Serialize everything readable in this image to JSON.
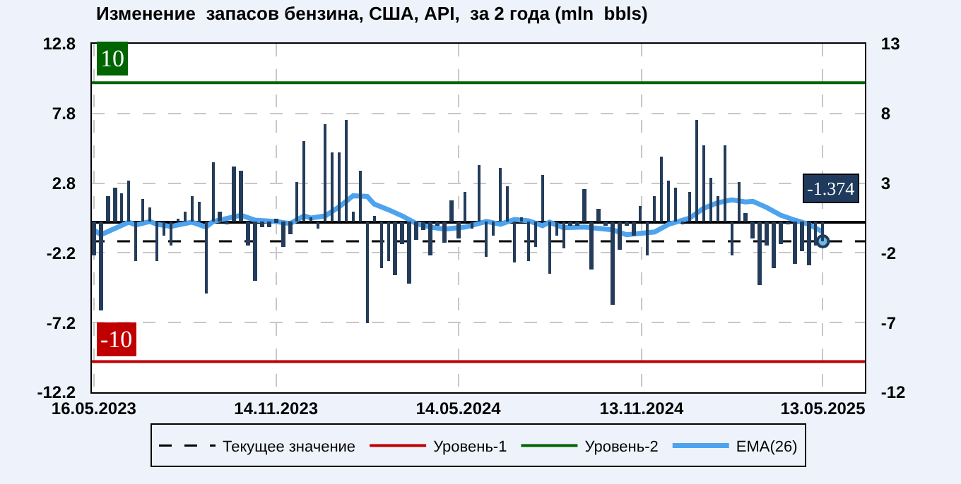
{
  "chart_data": {
    "type": "bar",
    "title": "Изменение  запасов бензина, США, API,  за 2 года (mln  bbls)",
    "x": [
      "2023-05-16",
      "2023-05-23",
      "2023-05-30",
      "2023-06-06",
      "2023-06-13",
      "2023-06-20",
      "2023-06-27",
      "2023-07-04",
      "2023-07-11",
      "2023-07-18",
      "2023-07-25",
      "2023-08-01",
      "2023-08-08",
      "2023-08-15",
      "2023-08-22",
      "2023-08-29",
      "2023-09-05",
      "2023-09-12",
      "2023-09-19",
      "2023-09-26",
      "2023-10-03",
      "2023-10-10",
      "2023-10-17",
      "2023-10-24",
      "2023-10-31",
      "2023-11-07",
      "2023-11-14",
      "2023-11-21",
      "2023-11-28",
      "2023-12-05",
      "2023-12-12",
      "2023-12-19",
      "2023-12-26",
      "2024-01-02",
      "2024-01-09",
      "2024-01-16",
      "2024-01-23",
      "2024-01-30",
      "2024-02-06",
      "2024-02-13",
      "2024-02-20",
      "2024-02-27",
      "2024-03-05",
      "2024-03-12",
      "2024-03-19",
      "2024-03-26",
      "2024-04-02",
      "2024-04-09",
      "2024-04-16",
      "2024-04-23",
      "2024-04-30",
      "2024-05-07",
      "2024-05-14",
      "2024-05-21",
      "2024-05-28",
      "2024-06-04",
      "2024-06-11",
      "2024-06-18",
      "2024-06-25",
      "2024-07-02",
      "2024-07-09",
      "2024-07-16",
      "2024-07-23",
      "2024-07-30",
      "2024-08-06",
      "2024-08-13",
      "2024-08-20",
      "2024-08-27",
      "2024-09-03",
      "2024-09-10",
      "2024-09-17",
      "2024-09-24",
      "2024-10-01",
      "2024-10-08",
      "2024-10-15",
      "2024-10-22",
      "2024-10-29",
      "2024-11-05",
      "2024-11-12",
      "2024-11-19",
      "2024-11-26",
      "2024-12-03",
      "2024-12-10",
      "2024-12-17",
      "2024-12-24",
      "2024-12-31",
      "2025-01-07",
      "2025-01-14",
      "2025-01-21",
      "2025-01-28",
      "2025-02-04",
      "2025-02-11",
      "2025-02-18",
      "2025-02-25",
      "2025-03-04",
      "2025-03-11",
      "2025-03-18",
      "2025-03-25",
      "2025-04-01",
      "2025-04-08",
      "2025-04-15",
      "2025-04-22",
      "2025-04-29",
      "2025-05-06",
      "2025-05-13"
    ],
    "series": [
      {
        "color": "#243c5a",
        "values": [
          -2.4,
          -6.3,
          1.9,
          2.5,
          2.1,
          3.0,
          -2.8,
          1.7,
          1.1,
          -2.8,
          -1.0,
          -1.7,
          0.3,
          0.8,
          1.9,
          1.5,
          -5.1,
          4.3,
          0.8,
          -0.2,
          4.0,
          3.7,
          -1.7,
          -4.2,
          -0.4,
          -0.4,
          0.2,
          -1.8,
          -0.9,
          2.9,
          5.8,
          0.4,
          -0.5,
          7.0,
          5.0,
          5.0,
          7.3,
          0.8,
          3.7,
          -7.2,
          0.5,
          -3.3,
          -2.8,
          -3.8,
          -1.6,
          -4.4,
          -1.3,
          -0.6,
          -2.4,
          -0.3,
          -1.5,
          1.6,
          -1.2,
          2.2,
          -0.5,
          4.1,
          -2.5,
          -1.0,
          3.9,
          2.6,
          -2.9,
          0.4,
          -2.8,
          -1.8,
          3.4,
          -3.7,
          -1.0,
          -1.9,
          -0.3,
          -0.3,
          2.4,
          -3.4,
          1.0,
          -0.3,
          -5.9,
          -2.0,
          -0.3,
          -1.0,
          1.2,
          -2.4,
          1.9,
          4.7,
          3.0,
          2.5,
          -0.2,
          2.2,
          7.3,
          5.5,
          3.2,
          1.9,
          5.5,
          -2.4,
          2.9,
          0.7,
          -1.2,
          -4.5,
          -1.7,
          -3.3,
          -1.6,
          -0.1,
          -3.0,
          -2.1,
          -3.1,
          -1.7,
          -1.374
        ]
      },
      {
        "type": "line",
        "name": "EMA(26)",
        "color": "#4da3ee",
        "x": [
          "2023-05-16",
          "2023-05-23",
          "2023-06-20",
          "2023-06-27",
          "2023-07-11",
          "2023-07-18",
          "2023-08-01",
          "2023-08-22",
          "2023-09-05",
          "2023-09-12",
          "2023-10-10",
          "2023-10-24",
          "2023-11-14",
          "2023-11-28",
          "2023-12-12",
          "2023-12-19",
          "2024-01-02",
          "2024-01-16",
          "2024-01-30",
          "2024-02-13",
          "2024-02-20",
          "2024-03-05",
          "2024-03-19",
          "2024-04-02",
          "2024-04-16",
          "2024-04-30",
          "2024-05-21",
          "2024-06-11",
          "2024-06-25",
          "2024-07-09",
          "2024-07-23",
          "2024-08-06",
          "2024-08-13",
          "2024-08-27",
          "2024-09-17",
          "2024-10-01",
          "2024-10-15",
          "2024-10-29",
          "2024-11-12",
          "2024-11-26",
          "2024-12-10",
          "2024-12-31",
          "2025-01-14",
          "2025-01-28",
          "2025-02-11",
          "2025-02-25",
          "2025-03-04",
          "2025-03-18",
          "2025-04-01",
          "2025-04-15",
          "2025-04-29",
          "2025-05-13"
        ],
        "values": [
          -0.55,
          -0.9,
          0.0,
          -0.2,
          0.05,
          -0.15,
          -0.3,
          0.0,
          -0.35,
          0.05,
          0.5,
          0.15,
          0.05,
          -0.1,
          0.45,
          0.3,
          0.45,
          1.1,
          1.9,
          1.85,
          1.3,
          0.9,
          0.45,
          -0.1,
          -0.35,
          -0.5,
          -0.35,
          0.05,
          -0.15,
          0.2,
          0.1,
          -0.25,
          0.0,
          -0.4,
          -0.35,
          -0.45,
          -0.55,
          -0.9,
          -0.8,
          -0.7,
          -0.15,
          0.3,
          1.0,
          1.4,
          1.6,
          1.45,
          1.5,
          1.05,
          0.5,
          0.15,
          -0.15,
          -0.7
        ]
      }
    ],
    "ref_lines": [
      {
        "axis": "y",
        "value": -1.374,
        "label": "Текущее значение",
        "color": "#000000",
        "line_style": "dashed"
      },
      {
        "axis": "y",
        "value": -10,
        "label": "Уровень-1",
        "color": "#c00000",
        "line_style": "solid"
      },
      {
        "axis": "y",
        "value": 10,
        "label": "Уровень-2",
        "color": "#006400",
        "line_style": "solid"
      }
    ],
    "annotations": [
      {
        "text": "10",
        "x": "2023-05-16",
        "y": 10
      },
      {
        "text": "-10",
        "x": "2023-05-16",
        "y": -10
      },
      {
        "text": "-1.374",
        "x": "2025-05-13",
        "y": -1.374
      }
    ],
    "xlim": [
      "2023-05-14",
      "2025-06-24"
    ],
    "xticks": [
      {
        "value": "2023-05-16",
        "label": "16.05.2023"
      },
      {
        "value": "2023-11-14",
        "label": "14.11.2023"
      },
      {
        "value": "2024-05-14",
        "label": "14.05.2024"
      },
      {
        "value": "2024-11-13",
        "label": "13.11.2024"
      },
      {
        "value": "2025-05-13",
        "label": "13.05.2025"
      }
    ],
    "ylim": [
      -12.2,
      12.8
    ],
    "yticks": [
      12.8,
      7.8,
      2.8,
      -2.2,
      -7.2,
      -12.2
    ],
    "y2lim": [
      -12,
      13
    ],
    "y2ticks": [
      13,
      8,
      3,
      -2,
      -7,
      -12
    ],
    "grid": true,
    "legend": "bottom"
  }
}
